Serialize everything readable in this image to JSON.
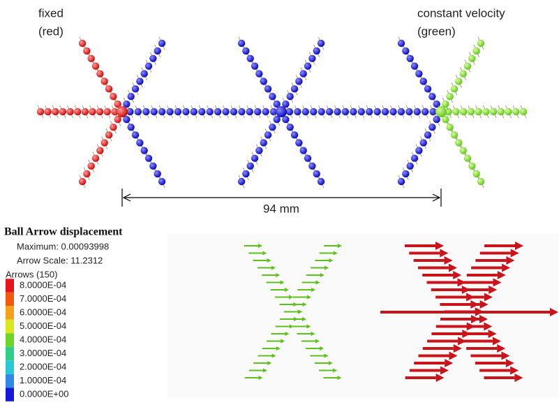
{
  "labels": {
    "fixed": "fixed",
    "fixed_color": "(red)",
    "moving": "constant velocity",
    "moving_color": "(green)",
    "dimension": "94 mm"
  },
  "legend": {
    "title": "Ball Arrow displacement",
    "maximum": "Maximum: 0.00093998",
    "scale": "Arrow Scale: 11.2312",
    "arrows": "Arrows (150)",
    "entries": [
      {
        "label": "8.0000E-04",
        "color": "#e8141a"
      },
      {
        "label": "7.0000E-04",
        "color": "#f25a0f"
      },
      {
        "label": "6.0000E-04",
        "color": "#f5a21a"
      },
      {
        "label": "5.0000E-04",
        "color": "#d9e81c"
      },
      {
        "label": "4.0000E-04",
        "color": "#6fd42a"
      },
      {
        "label": "3.0000E-04",
        "color": "#2fcf8a"
      },
      {
        "label": "2.0000E-04",
        "color": "#27c8d8"
      },
      {
        "label": "1.0000E-04",
        "color": "#2c8ae6"
      },
      {
        "label": "0.0000E+00",
        "color": "#1418d8"
      }
    ]
  }
}
